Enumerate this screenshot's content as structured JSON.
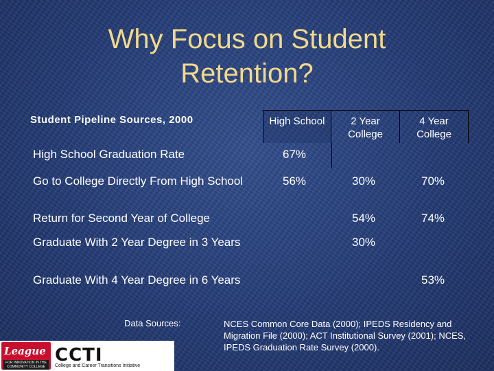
{
  "slide": {
    "title_line1": "Why Focus on Student",
    "title_line2": "Retention?"
  },
  "table": {
    "label": "Student Pipeline Sources, 2000",
    "columns": [
      "High School",
      "2 Year\nCollege",
      "4 Year\nCollege"
    ],
    "rows": [
      {
        "label": "High School Graduation Rate",
        "high_school": "67%",
        "two_year": "",
        "four_year": ""
      },
      {
        "label": "Go to College Directly From High School",
        "high_school": "56%",
        "two_year": "30%",
        "four_year": "70%"
      },
      {
        "label": "Return for Second Year of College",
        "high_school": "",
        "two_year": "54%",
        "four_year": "74%"
      },
      {
        "label": "Graduate With 2 Year Degree in 3 Years",
        "high_school": "",
        "two_year": "30%",
        "four_year": ""
      },
      {
        "label": "Graduate With 4 Year Degree in 6 Years",
        "high_school": "",
        "two_year": "",
        "four_year": "53%"
      }
    ]
  },
  "sources": {
    "label": "Data Sources:",
    "text": "NCES Common Core Data (2000); IPEDS Residency and Migration File (2000); ACT Institutional Survey (2001); NCES, IPEDS Graduation Rate Survey (2000)."
  },
  "logos": {
    "league_name": "League",
    "league_sub": "FOR INNOVATION IN THE COMMUNITY COLLEGE",
    "ccti_name": "CCTI",
    "ccti_sub": "College and Career Transitions Initiative"
  }
}
